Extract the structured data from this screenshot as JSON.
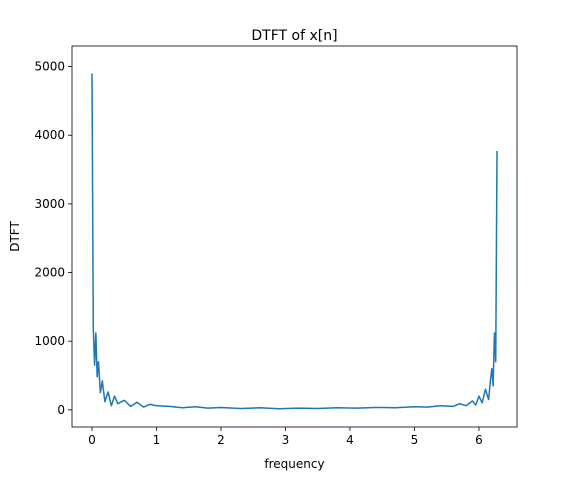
{
  "chart_data": {
    "type": "line",
    "title": "DTFT of x[n]",
    "x_label": "frequency",
    "y_label": "DTFT",
    "color": "#1f77b4",
    "grid": false,
    "xlim": [
      -0.31,
      6.59
    ],
    "ylim": [
      -250,
      5300
    ],
    "xticks": [
      0,
      1,
      2,
      3,
      4,
      5,
      6
    ],
    "yticks": [
      0,
      1000,
      2000,
      3000,
      4000,
      5000
    ],
    "x": [
      0,
      0.02,
      0.04,
      0.06,
      0.08,
      0.1,
      0.13,
      0.16,
      0.2,
      0.25,
      0.3,
      0.35,
      0.4,
      0.5,
      0.6,
      0.7,
      0.8,
      0.9,
      1.0,
      1.2,
      1.4,
      1.6,
      1.8,
      2.0,
      2.3,
      2.6,
      2.9,
      3.2,
      3.5,
      3.8,
      4.1,
      4.4,
      4.7,
      5.0,
      5.2,
      5.4,
      5.6,
      5.7,
      5.8,
      5.9,
      5.95,
      6.0,
      6.05,
      6.1,
      6.15,
      6.18,
      6.2,
      6.22,
      6.24,
      6.26,
      6.28
    ],
    "values": [
      4900,
      1200,
      650,
      1120,
      480,
      700,
      250,
      420,
      120,
      260,
      60,
      200,
      90,
      140,
      50,
      110,
      40,
      80,
      60,
      50,
      30,
      45,
      25,
      35,
      20,
      30,
      15,
      25,
      20,
      30,
      25,
      35,
      30,
      45,
      40,
      60,
      50,
      90,
      60,
      130,
      70,
      200,
      100,
      300,
      150,
      450,
      600,
      350,
      1120,
      700,
      3770
    ]
  }
}
